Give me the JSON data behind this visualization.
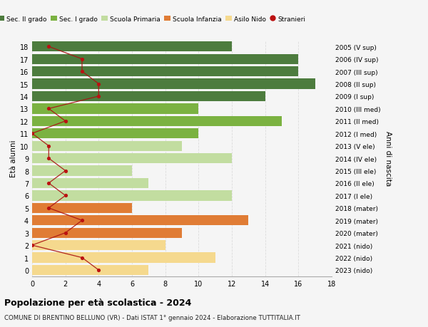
{
  "ages": [
    18,
    17,
    16,
    15,
    14,
    13,
    12,
    11,
    10,
    9,
    8,
    7,
    6,
    5,
    4,
    3,
    2,
    1,
    0
  ],
  "right_labels": [
    "2005 (V sup)",
    "2006 (IV sup)",
    "2007 (III sup)",
    "2008 (II sup)",
    "2009 (I sup)",
    "2010 (III med)",
    "2011 (II med)",
    "2012 (I med)",
    "2013 (V ele)",
    "2014 (IV ele)",
    "2015 (III ele)",
    "2016 (II ele)",
    "2017 (I ele)",
    "2018 (mater)",
    "2019 (mater)",
    "2020 (mater)",
    "2021 (nido)",
    "2022 (nido)",
    "2023 (nido)"
  ],
  "bar_values": [
    12,
    16,
    16,
    17,
    14,
    10,
    15,
    10,
    9,
    12,
    6,
    7,
    12,
    6,
    13,
    9,
    8,
    11,
    7
  ],
  "bar_colors": [
    "#4d7c3e",
    "#4d7c3e",
    "#4d7c3e",
    "#4d7c3e",
    "#4d7c3e",
    "#7bb241",
    "#7bb241",
    "#7bb241",
    "#c2dda0",
    "#c2dda0",
    "#c2dda0",
    "#c2dda0",
    "#c2dda0",
    "#e07c35",
    "#e07c35",
    "#e07c35",
    "#f5d98e",
    "#f5d98e",
    "#f5d98e"
  ],
  "stranieri_values": [
    1,
    3,
    3,
    4,
    4,
    1,
    2,
    0,
    1,
    1,
    2,
    1,
    2,
    1,
    3,
    2,
    0,
    3,
    4
  ],
  "legend_labels": [
    "Sec. II grado",
    "Sec. I grado",
    "Scuola Primaria",
    "Scuola Infanzia",
    "Asilo Nido",
    "Stranieri"
  ],
  "legend_colors": [
    "#4d7c3e",
    "#7bb241",
    "#c2dda0",
    "#e07c35",
    "#f5d98e",
    "#bb1111"
  ],
  "ylabel": "Età alunni",
  "right_ylabel": "Anni di nascita",
  "title": "Popolazione per età scolastica - 2024",
  "subtitle": "COMUNE DI BRENTINO BELLUNO (VR) - Dati ISTAT 1° gennaio 2024 - Elaborazione TUTTITALIA.IT",
  "xlim": [
    0,
    18
  ],
  "bg_color": "#f5f5f5",
  "grid_color": "#dddddd"
}
